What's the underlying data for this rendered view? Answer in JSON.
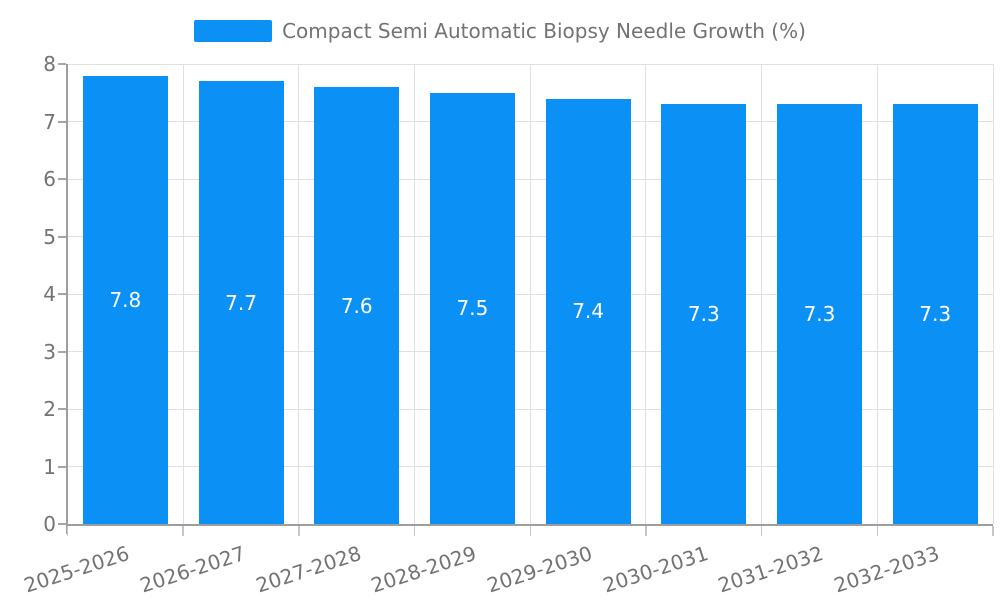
{
  "chart_data": {
    "type": "bar",
    "legend_label": "Compact Semi Automatic Biopsy Needle Growth (%)",
    "categories": [
      "2025-2026",
      "2026-2027",
      "2027-2028",
      "2028-2029",
      "2029-2030",
      "2030-2031",
      "2031-2032",
      "2032-2033"
    ],
    "values": [
      7.8,
      7.7,
      7.6,
      7.5,
      7.4,
      7.3,
      7.3,
      7.3
    ],
    "value_labels": [
      "7.8",
      "7.7",
      "7.6",
      "7.5",
      "7.4",
      "7.3",
      "7.3",
      "7.3"
    ],
    "xlabel": "",
    "ylabel": "",
    "ylim": [
      0,
      8
    ],
    "yticks": [
      0,
      1,
      2,
      3,
      4,
      5,
      6,
      7,
      8
    ],
    "grid": true,
    "legend_position": "top-center",
    "x_label_rotation_deg": -18,
    "value_label_position": "middle-of-bar",
    "colors": {
      "bar": "#0b90f5",
      "bar_value_text": "#ffffff",
      "axis_text": "#737373",
      "axis_line": "#9e9e9e",
      "grid_line": "#e0e0e0",
      "background": "#ffffff"
    }
  }
}
